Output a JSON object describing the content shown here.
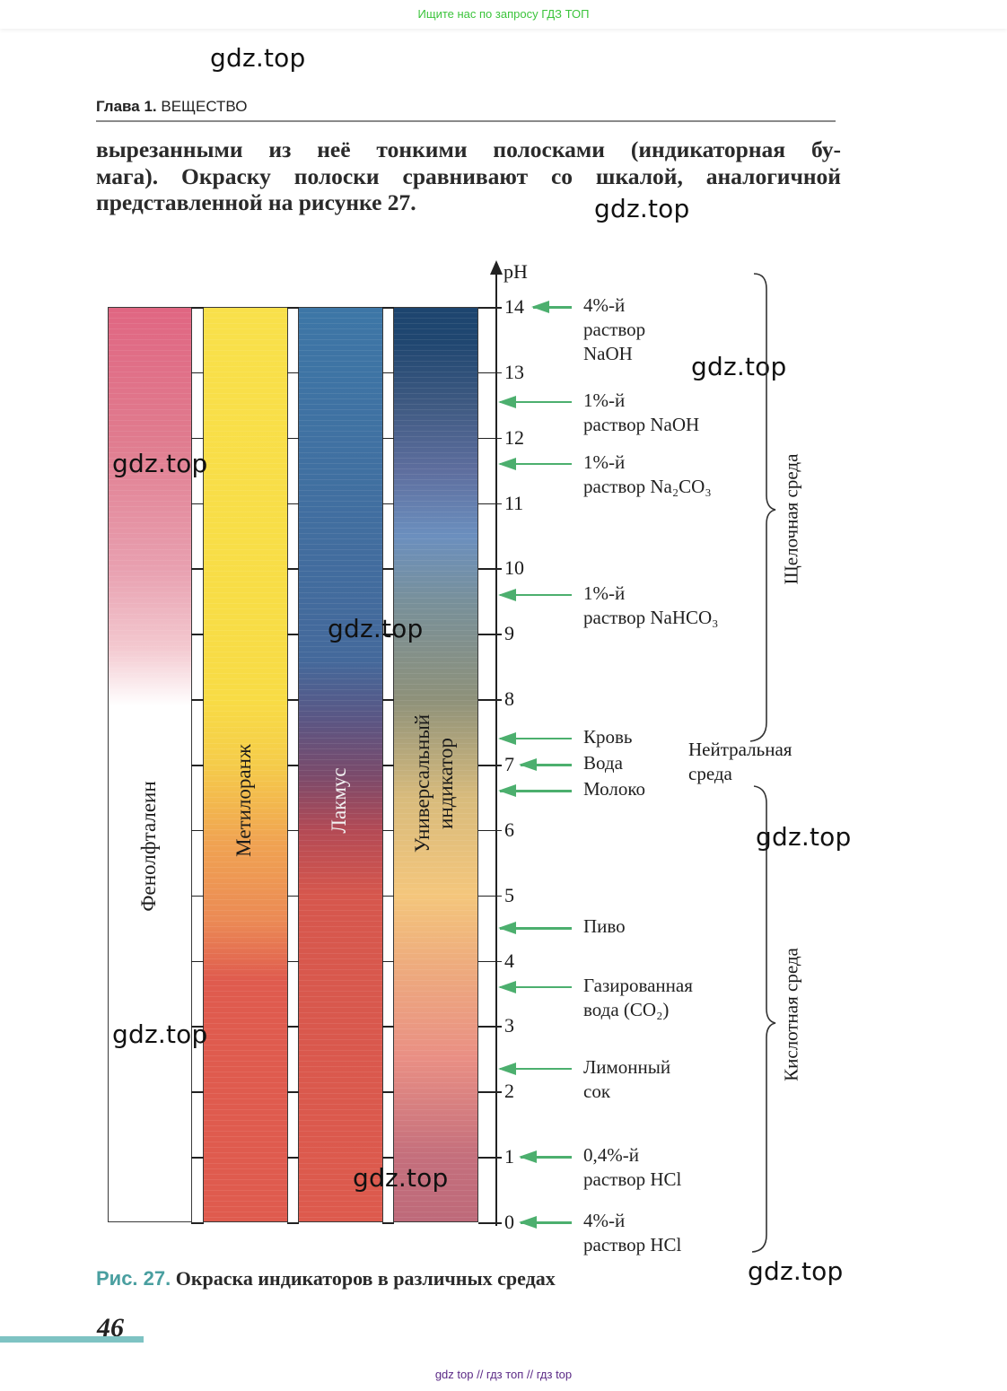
{
  "banner": {
    "promo": "Ищите нас по запросу ГДЗ ТОП"
  },
  "watermark": "gdz.top",
  "header": {
    "chapter_bold": "Глава 1.",
    "chapter_title": "ВЕЩЕСТВО"
  },
  "paragraph": {
    "lines": [
      "вырезанными из неё тонкими полосками (индикаторная бу-",
      "мага). Окраску полоски сравнивают со шкалой, аналогичной",
      "представленной на рисунке 27."
    ]
  },
  "figure": {
    "axis_label": "pH",
    "ph_ticks": [
      "0",
      "1",
      "2",
      "3",
      "4",
      "5",
      "6",
      "7",
      "8",
      "9",
      "10",
      "11",
      "12",
      "13",
      "14"
    ],
    "indicators": [
      {
        "name": "Фенолфталеин",
        "colors": [
          {
            "ph": 0,
            "color": "#ffffff"
          },
          {
            "ph": 7.9,
            "color": "#ffffff"
          },
          {
            "ph": 8.8,
            "color": "#f3c8cf"
          },
          {
            "ph": 10,
            "color": "#e8a0b0"
          },
          {
            "ph": 12,
            "color": "#e07b8e"
          },
          {
            "ph": 14,
            "color": "#e06682"
          }
        ]
      },
      {
        "name": "Метилоранж",
        "colors": [
          {
            "ph": 0,
            "color": "#df5b4e"
          },
          {
            "ph": 3.7,
            "color": "#df5b4e"
          },
          {
            "ph": 4.6,
            "color": "#eb8a55"
          },
          {
            "ph": 5.8,
            "color": "#f0a352"
          },
          {
            "ph": 7,
            "color": "#f5cc4a"
          },
          {
            "ph": 8,
            "color": "#f8dc45"
          },
          {
            "ph": 14,
            "color": "#f9e04a"
          }
        ]
      },
      {
        "name": "Лакмус",
        "colors": [
          {
            "ph": 0,
            "color": "#dd5a4d"
          },
          {
            "ph": 5,
            "color": "#d6574d"
          },
          {
            "ph": 6,
            "color": "#b34a55"
          },
          {
            "ph": 6.8,
            "color": "#7c4a6a"
          },
          {
            "ph": 7.7,
            "color": "#5a5684"
          },
          {
            "ph": 8.6,
            "color": "#44699b"
          },
          {
            "ph": 14,
            "color": "#3d76a6"
          }
        ]
      },
      {
        "name": "Универсальный индикатор",
        "colors": [
          {
            "ph": 0,
            "color": "#be6a7a"
          },
          {
            "ph": 1,
            "color": "#c46f7c"
          },
          {
            "ph": 2.5,
            "color": "#e98f84"
          },
          {
            "ph": 4,
            "color": "#eead7d"
          },
          {
            "ph": 5,
            "color": "#f4c67c"
          },
          {
            "ph": 6.5,
            "color": "#d8bb7c"
          },
          {
            "ph": 8,
            "color": "#8e917a"
          },
          {
            "ph": 9.5,
            "color": "#78909a"
          },
          {
            "ph": 10.5,
            "color": "#6b8fbe"
          },
          {
            "ph": 11.5,
            "color": "#5e6e9e"
          },
          {
            "ph": 12.5,
            "color": "#3f5a82"
          },
          {
            "ph": 13.5,
            "color": "#1f4670"
          },
          {
            "ph": 14,
            "color": "#1d456f"
          }
        ]
      }
    ],
    "samples": [
      {
        "ph": 14,
        "lines": [
          "4%-й",
          "раствор",
          "NaOH"
        ]
      },
      {
        "ph": 12.55,
        "lines": [
          "1%-й",
          "раствор NaOH"
        ]
      },
      {
        "ph": 11.6,
        "lines": [
          "1%-й",
          "раствор Na₂CO₃"
        ]
      },
      {
        "ph": 9.6,
        "lines": [
          "1%-й",
          "раствор NaHCO₃"
        ]
      },
      {
        "ph": 7.4,
        "lines": [
          "Кровь"
        ]
      },
      {
        "ph": 7,
        "lines": [
          "Вода"
        ]
      },
      {
        "ph": 6.6,
        "lines": [
          "Молоко"
        ]
      },
      {
        "ph": 4.5,
        "lines": [
          "Пиво"
        ]
      },
      {
        "ph": 3.6,
        "lines": [
          "Газированная",
          "вода (CO₂)"
        ]
      },
      {
        "ph": 2.35,
        "lines": [
          "Лимонный",
          "сок"
        ]
      },
      {
        "ph": 1,
        "lines": [
          "0,4%-й",
          "раствор HCl"
        ]
      },
      {
        "ph": 0,
        "lines": [
          "4%-й",
          "раствор HCl"
        ]
      }
    ],
    "ranges": {
      "alkaline": "Щелочная среда",
      "neutral_lines": [
        "Нейтральная",
        "среда"
      ],
      "acidic": "Кислотная среда"
    },
    "arrow_color": "#4caf6e",
    "caption_label": "Рис. 27.",
    "caption_text": " Окраска индикаторов в различных средах"
  },
  "page_number": "46",
  "footer": "gdz top  //  гдз топ  //  гдз top"
}
